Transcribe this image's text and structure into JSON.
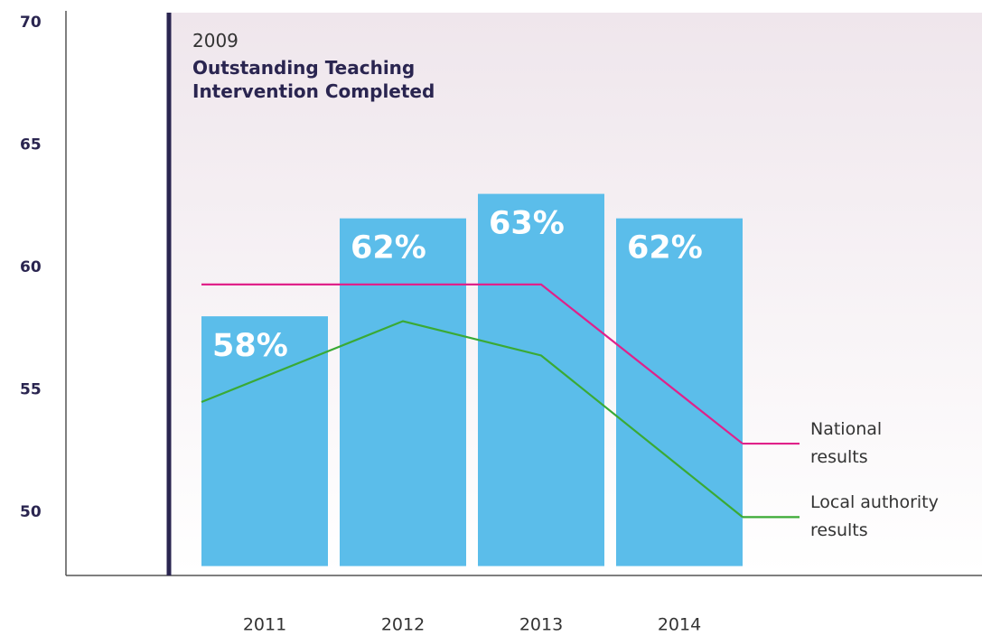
{
  "chart_data": {
    "type": "bar",
    "categories": [
      "2011",
      "2012",
      "2013",
      "2014"
    ],
    "values": [
      58,
      62,
      63,
      62
    ],
    "value_labels": [
      "58%",
      "62%",
      "63%",
      "62%"
    ],
    "color": "#5bbdea",
    "series": [
      {
        "name": "National results",
        "color": "#e0218a",
        "values": [
          59.3,
          59.3,
          59.3,
          52.8
        ]
      },
      {
        "name": "Local authority results",
        "color": "#3aaa35",
        "values": [
          54.5,
          57.8,
          56.4,
          49.8
        ]
      }
    ],
    "annotation": {
      "year": "2009",
      "text": "Outstanding Teaching Intervention Completed"
    },
    "ylim": [
      47.8,
      70.4
    ],
    "yticks": [
      50,
      55,
      60,
      65,
      70
    ]
  }
}
